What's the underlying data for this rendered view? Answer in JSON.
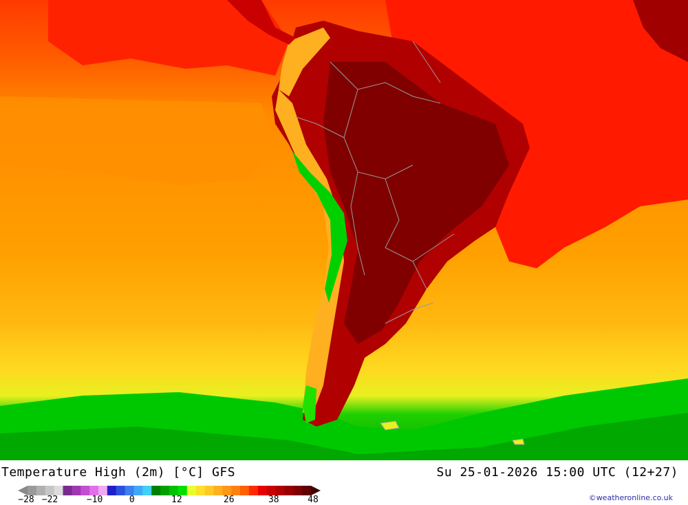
{
  "map": {
    "title": "Temperature High (2m) [°C] GFS",
    "valid_time": "Su 25-01-2026 15:00 UTC (12+27)",
    "credit": "©weatheronline.co.uk",
    "region": "South America"
  },
  "legend": {
    "tick_labels": [
      "-28",
      "-22",
      "-10",
      "0",
      "12",
      "26",
      "38",
      "48"
    ],
    "tick_values": [
      -28,
      -22,
      -10,
      0,
      12,
      26,
      38,
      48
    ],
    "swatches": [
      "#9a9a9a",
      "#b0b0b0",
      "#c6c6c6",
      "#dcdcdc",
      "#7a2a8e",
      "#9e38b0",
      "#c24ed0",
      "#e070e8",
      "#f0a8f4",
      "#2020c8",
      "#2a50e0",
      "#3a80f0",
      "#40a8f8",
      "#40d0f8",
      "#008000",
      "#00a000",
      "#00c000",
      "#00e000",
      "#e8ff30",
      "#ffe028",
      "#ffc828",
      "#ffb020",
      "#ff9818",
      "#ff8010",
      "#ff6000",
      "#ff2a00",
      "#e80000",
      "#c80000",
      "#b00000",
      "#980000",
      "#800000",
      "#600000"
    ],
    "colors": {
      "ocean_tropical": "#ff2000",
      "ocean_subtropical": "#ff8000",
      "ocean_midlat": "#ffa000",
      "ocean_cold": "#00c800",
      "land_hot": "#a00000",
      "land_very_hot": "#7a0000",
      "andes_cool": "#00e000",
      "border": "#9a9a9a"
    }
  }
}
